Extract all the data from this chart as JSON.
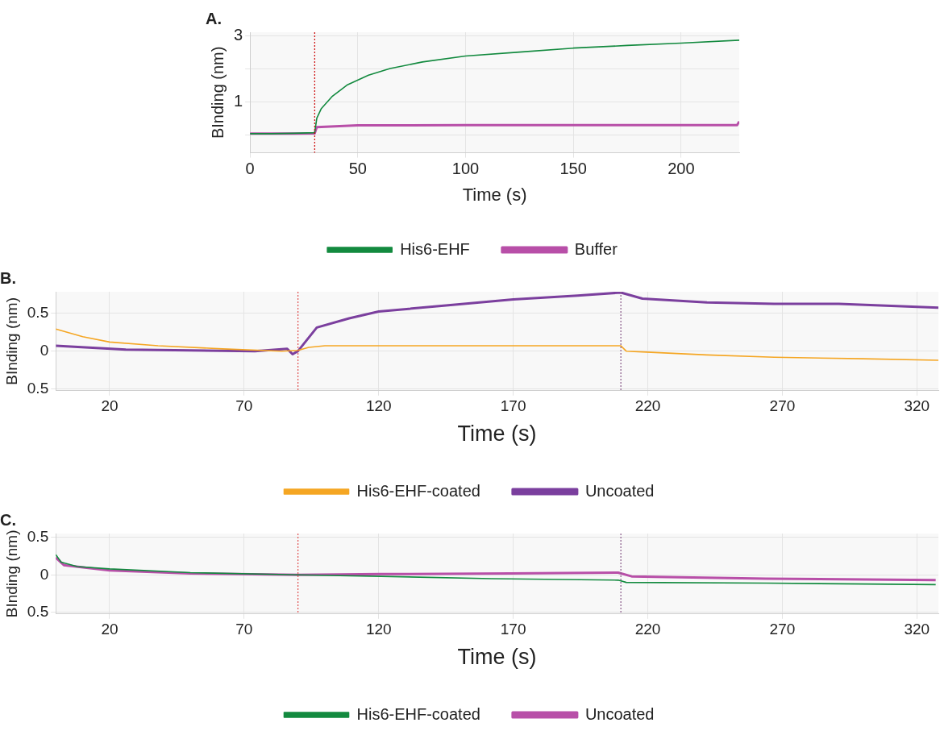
{
  "chart_data": [
    {
      "type": "line",
      "title": "A.",
      "xlabel": "Time (s)",
      "ylabel": "BInding (nm)",
      "xlim": [
        0,
        227
      ],
      "xticks": [
        0,
        50,
        100,
        150,
        200
      ],
      "ylim": [
        -0.55,
        3.1
      ],
      "yticks": [
        {
          "value": 0,
          "label": null
        },
        1,
        {
          "value": 2,
          "label": null
        },
        3
      ],
      "grid": true,
      "legend": "bottom",
      "marker": "none",
      "line_style": "solid",
      "ref_lines": [
        {
          "axis": "x",
          "value": 30,
          "color": "#cc0000",
          "line_style": "dotted"
        }
      ],
      "series": [
        {
          "name": "His6-EHF",
          "color": "#138a3f",
          "x": [
            0,
            10,
            20,
            30,
            31,
            33,
            38,
            45,
            55,
            65,
            80,
            100,
            125,
            150,
            175,
            200,
            227
          ],
          "values": [
            0.03,
            0.03,
            0.04,
            0.06,
            0.5,
            0.78,
            1.15,
            1.5,
            1.8,
            2.0,
            2.2,
            2.38,
            2.5,
            2.62,
            2.7,
            2.77,
            2.86
          ]
        },
        {
          "name": "Buffer",
          "color": "#b84fa8",
          "x": [
            0,
            10,
            20,
            30,
            31,
            50,
            100,
            150,
            200,
            226,
            227
          ],
          "values": [
            0.03,
            0.03,
            0.03,
            0.04,
            0.23,
            0.28,
            0.29,
            0.29,
            0.29,
            0.29,
            0.4
          ]
        }
      ]
    },
    {
      "type": "line",
      "title": "B.",
      "xlabel": "Time (s)",
      "ylabel": "BInding (nm)",
      "xlim": [
        0,
        328
      ],
      "xticks": [
        20,
        70,
        120,
        170,
        220,
        270,
        320
      ],
      "ylim": [
        -0.52,
        0.78
      ],
      "yticks": [
        {
          "value": -0.5,
          "label": "0.5"
        },
        0,
        0.5
      ],
      "grid": true,
      "legend": "bottom",
      "marker": "none",
      "line_style": "solid",
      "ref_lines": [
        {
          "axis": "x",
          "value": 90,
          "color": "#e05050",
          "line_style": "dotted"
        },
        {
          "axis": "x",
          "value": 210,
          "color": "#8a5a8a",
          "line_style": "dotted"
        }
      ],
      "series": [
        {
          "name": "His6-EHF-coated",
          "color": "#f5a623",
          "x": [
            0,
            10,
            20,
            38,
            62,
            84,
            90,
            94,
            100,
            150,
            210,
            212,
            218,
            242,
            267,
            300,
            328
          ],
          "values": [
            0.29,
            0.19,
            0.12,
            0.07,
            0.03,
            0,
            0.01,
            0.05,
            0.07,
            0.07,
            0.07,
            0,
            -0.01,
            -0.05,
            -0.08,
            -0.1,
            -0.12
          ]
        },
        {
          "name": "Uncoated",
          "color": "#7b3f9e",
          "x": [
            0,
            26,
            74,
            86,
            88,
            90,
            97,
            109,
            120,
            145,
            170,
            194,
            210,
            218,
            242,
            267,
            291,
            328
          ],
          "values": [
            0.07,
            0.02,
            0,
            0.03,
            -0.04,
            0,
            0.31,
            0.43,
            0.52,
            0.6,
            0.68,
            0.73,
            0.77,
            0.69,
            0.64,
            0.62,
            0.62,
            0.57
          ]
        }
      ]
    },
    {
      "type": "line",
      "title": "C.",
      "xlabel": "Time (s)",
      "ylabel": "BInding (nm)",
      "xlim": [
        0,
        328
      ],
      "xticks": [
        20,
        70,
        120,
        170,
        220,
        270,
        320
      ],
      "ylim": [
        -0.52,
        0.55
      ],
      "yticks": [
        {
          "value": -0.5,
          "label": "0.5"
        },
        0,
        0.5
      ],
      "grid": true,
      "legend": "bottom",
      "marker": "none",
      "line_style": "solid",
      "ref_lines": [
        {
          "axis": "x",
          "value": 90,
          "color": "#e05050",
          "line_style": "dotted"
        },
        {
          "axis": "x",
          "value": 210,
          "color": "#8a5a8a",
          "line_style": "dotted"
        }
      ],
      "series": [
        {
          "name": "His6-EHF-coated",
          "color": "#138a3f",
          "x": [
            0,
            2,
            8,
            20,
            50,
            90,
            121,
            162,
            209,
            212,
            264,
            327
          ],
          "values": [
            0.27,
            0.17,
            0.11,
            0.08,
            0.03,
            0,
            -0.02,
            -0.05,
            -0.07,
            -0.1,
            -0.11,
            -0.13
          ]
        },
        {
          "name": "Uncoated",
          "color": "#b84fa8",
          "x": [
            0,
            3,
            20,
            50,
            90,
            121,
            169,
            209,
            214,
            264,
            327
          ],
          "values": [
            0.23,
            0.13,
            0.06,
            0.02,
            0,
            0.01,
            0.02,
            0.03,
            -0.02,
            -0.05,
            -0.07
          ]
        }
      ]
    }
  ]
}
